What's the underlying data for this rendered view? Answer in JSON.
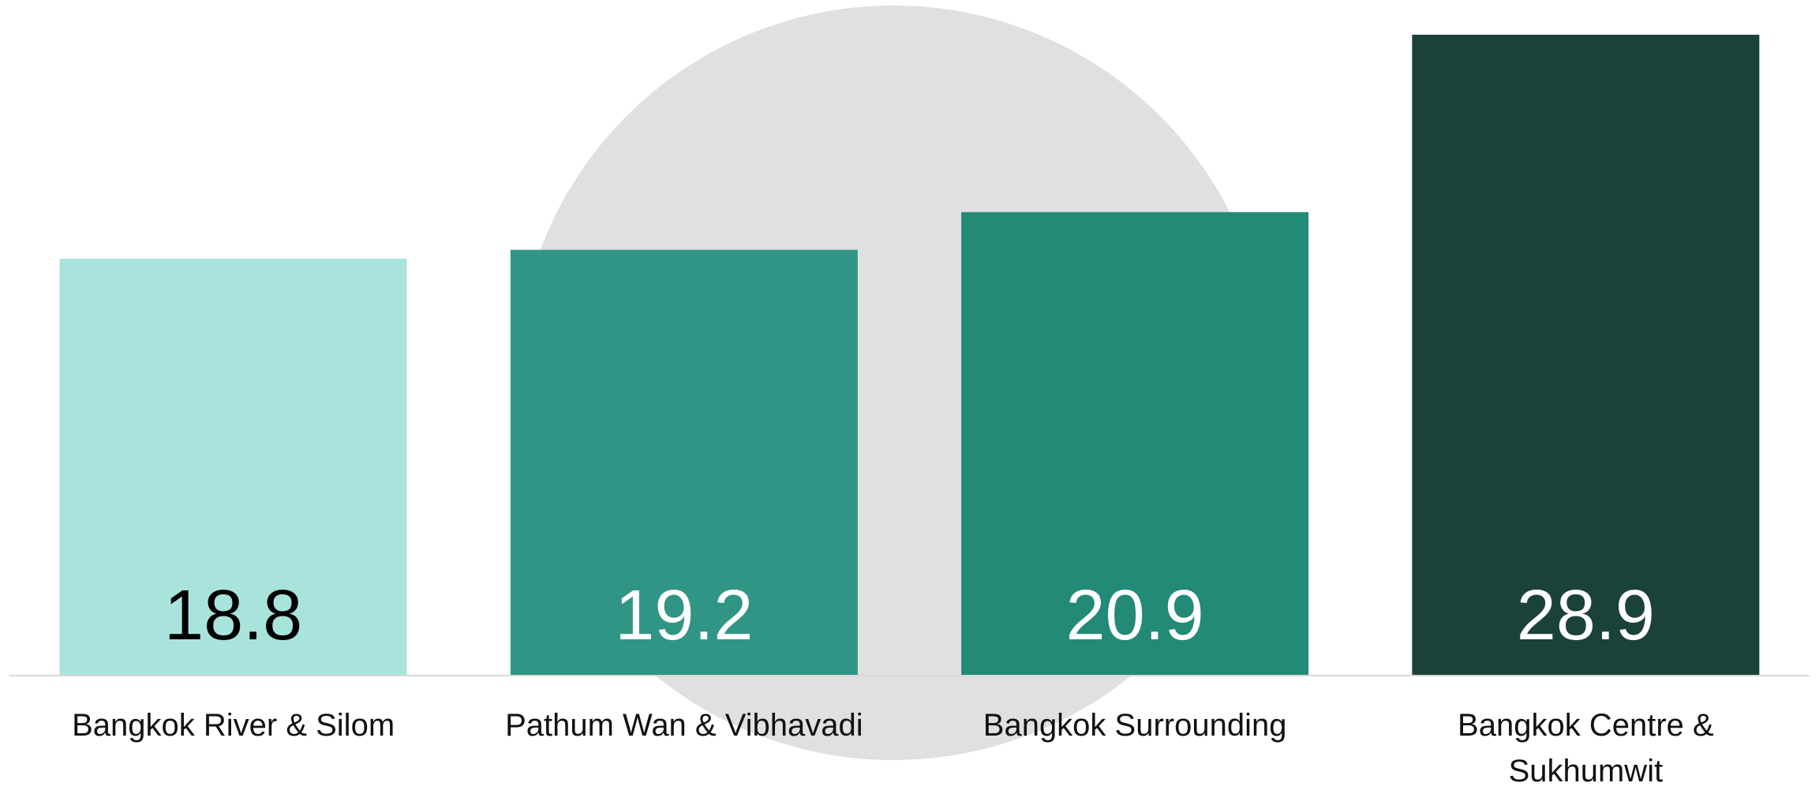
{
  "chart_data": {
    "type": "bar",
    "categories": [
      "Bangkok River & Silom",
      "Pathum Wan & Vibhavadi",
      "Bangkok Surrounding",
      "Bangkok Centre & Sukhumwit"
    ],
    "values": [
      18.8,
      19.2,
      20.9,
      28.9
    ],
    "colors": [
      "#a8e4dc",
      "#319585",
      "#228a77",
      "#1b423a"
    ],
    "label_colors": [
      "#000000",
      "#ffffff",
      "#ffffff",
      "#ffffff"
    ],
    "grid": false
  }
}
